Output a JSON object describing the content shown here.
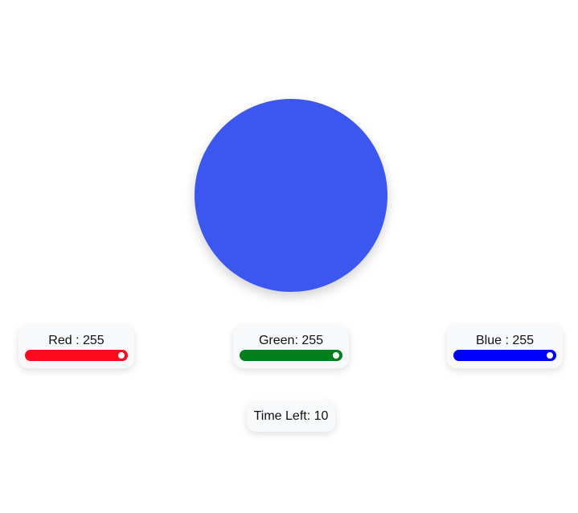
{
  "target": {
    "color": "#3b57f0"
  },
  "sliders": [
    {
      "id": "red",
      "label": "Red : 255",
      "value": 255,
      "max": 255,
      "color": "#ff0a1e"
    },
    {
      "id": "green",
      "label": "Green: 255",
      "value": 255,
      "max": 255,
      "color": "#00801d"
    },
    {
      "id": "blue",
      "label": "Blue : 255",
      "value": 255,
      "max": 255,
      "color": "#0000ff"
    }
  ],
  "timer": {
    "label": "Time Left: 10"
  }
}
